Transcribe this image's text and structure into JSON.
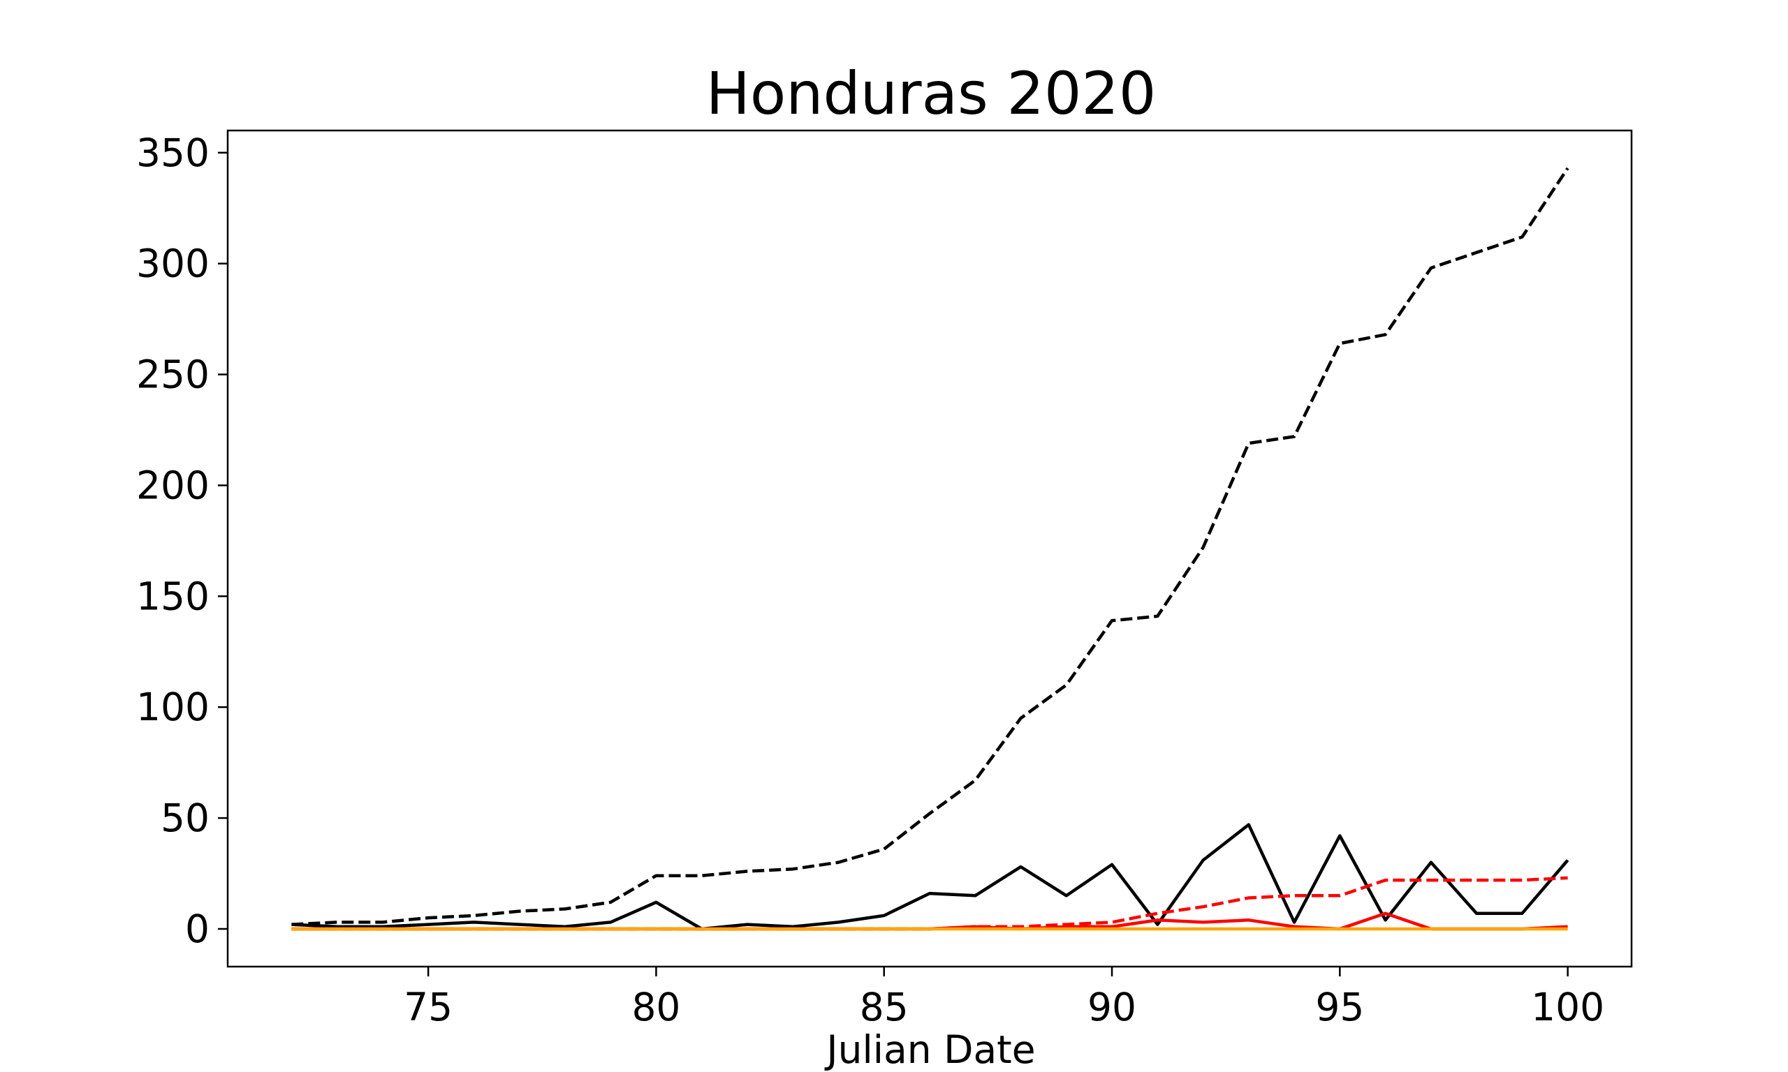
{
  "chart_data": {
    "type": "line",
    "title": "Honduras 2020",
    "xlabel": "Julian Date",
    "ylabel": "",
    "xlim": [
      70.6,
      101.4
    ],
    "ylim": [
      -17,
      360
    ],
    "xticks": [
      75,
      80,
      85,
      90,
      95,
      100
    ],
    "yticks": [
      0,
      50,
      100,
      150,
      200,
      250,
      300,
      350
    ],
    "grid": false,
    "x": [
      72,
      73,
      74,
      75,
      76,
      77,
      78,
      79,
      80,
      81,
      82,
      83,
      84,
      85,
      86,
      87,
      88,
      89,
      90,
      91,
      92,
      93,
      94,
      95,
      96,
      97,
      98,
      99,
      100
    ],
    "series": [
      {
        "color": "#000000",
        "style": "dashed",
        "values": [
          2,
          3,
          3,
          5,
          6,
          8,
          9,
          12,
          24,
          24,
          26,
          27,
          30,
          36,
          52,
          67,
          95,
          110,
          139,
          141,
          172,
          219,
          222,
          264,
          268,
          298,
          305,
          312,
          343
        ]
      },
      {
        "color": "#000000",
        "style": "solid",
        "values": [
          2,
          1,
          1,
          2,
          3,
          2,
          1,
          3,
          12,
          0,
          2,
          1,
          3,
          6,
          16,
          15,
          28,
          15,
          29,
          2,
          31,
          47,
          3,
          42,
          4,
          30,
          7,
          7,
          31
        ]
      },
      {
        "color": "#ff0000",
        "style": "dashed",
        "values": [
          0,
          0,
          0,
          0,
          0,
          0,
          0,
          0,
          0,
          0,
          0,
          0,
          0,
          0,
          0,
          1,
          1,
          2,
          3,
          7,
          10,
          14,
          15,
          15,
          22,
          22,
          22,
          22,
          23
        ]
      },
      {
        "color": "#ff0000",
        "style": "solid",
        "values": [
          0,
          0,
          0,
          0,
          0,
          0,
          0,
          0,
          0,
          0,
          0,
          0,
          0,
          0,
          0,
          1,
          0,
          1,
          1,
          4,
          3,
          4,
          1,
          0,
          7,
          0,
          0,
          0,
          1
        ]
      },
      {
        "color": "#ffa500",
        "style": "solid",
        "values": [
          0,
          0,
          0,
          0,
          0,
          0,
          0,
          0,
          0,
          0,
          0,
          0,
          0,
          0,
          0,
          0,
          0,
          0,
          0,
          0,
          0,
          0,
          0,
          0,
          0,
          0,
          0,
          0,
          0
        ]
      }
    ]
  }
}
